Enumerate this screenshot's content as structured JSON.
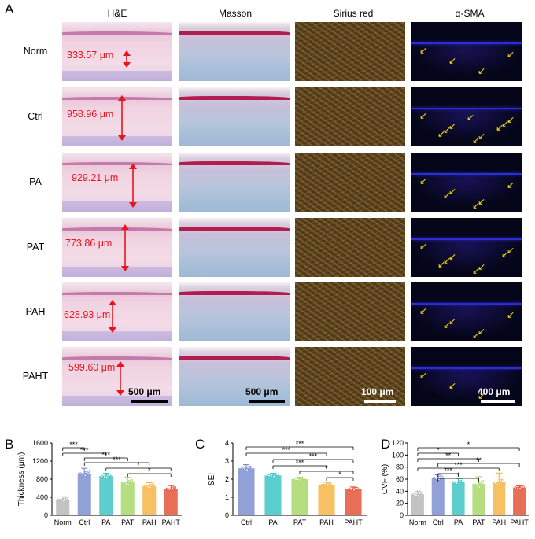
{
  "panel_letters": {
    "A": "A",
    "B": "B",
    "C": "C",
    "D": "D"
  },
  "columns": [
    "H&E",
    "Masson",
    "Sirius red",
    "α-SMA"
  ],
  "rows": [
    "Norm",
    "Ctrl",
    "PA",
    "PAT",
    "PAH",
    "PAHT"
  ],
  "thickness_labels": [
    "333.57 μm",
    "958.96 μm",
    "929.21 μm",
    "773.86 μm",
    "628.93 μm",
    "599.60 μm"
  ],
  "scale_bars": {
    "he": "500 μm",
    "masson": "500 μm",
    "sirius": "100 μm",
    "sma": "400 μm"
  },
  "colors": {
    "Norm": "#b9b9b9",
    "Ctrl": "#7f8fd1",
    "PA": "#3fc6c6",
    "PAT": "#a8d86a",
    "PAH": "#f6b547",
    "PAHT": "#e5553b",
    "thickness_text": "#e8141e",
    "arrow": "#ffe000"
  },
  "chart_data": [
    {
      "type": "bar",
      "panel": "B",
      "categories": [
        "Norm",
        "Ctrl",
        "PA",
        "PAT",
        "PAH",
        "PAHT"
      ],
      "values": [
        350,
        930,
        870,
        730,
        650,
        590
      ],
      "errors": [
        60,
        110,
        60,
        110,
        70,
        70
      ],
      "ylabel": "Thickness (μm)",
      "ylim": [
        0,
        1600
      ],
      "yticks": [
        0,
        400,
        800,
        1200,
        1600
      ],
      "significance": [
        "***",
        "***",
        "***",
        "***",
        "*",
        "*"
      ]
    },
    {
      "type": "bar",
      "panel": "C",
      "categories": [
        "Ctrl",
        "PA",
        "PAT",
        "PAH",
        "PAHT"
      ],
      "values": [
        2.6,
        2.2,
        2.0,
        1.7,
        1.45
      ],
      "errors": [
        0.2,
        0.12,
        0.1,
        0.12,
        0.12
      ],
      "ylabel": "SEI",
      "ylim": [
        0,
        4
      ],
      "yticks": [
        0,
        1,
        2,
        3,
        4
      ],
      "significance": [
        "***",
        "***",
        "***",
        "***",
        "*",
        "*"
      ]
    },
    {
      "type": "bar",
      "panel": "D",
      "categories": [
        "Norm",
        "Ctrl",
        "PA",
        "PAT",
        "PAH",
        "PAHT"
      ],
      "values": [
        35,
        62,
        55,
        52,
        55,
        46
      ],
      "errors": [
        5,
        5,
        6,
        12,
        15,
        3
      ],
      "ylabel": "CVF (%)",
      "ylim": [
        0,
        120
      ],
      "yticks": [
        0,
        20,
        40,
        60,
        80,
        100,
        120
      ],
      "significance": [
        "*",
        "*",
        "**",
        "**",
        "***",
        "***",
        "*"
      ]
    }
  ]
}
